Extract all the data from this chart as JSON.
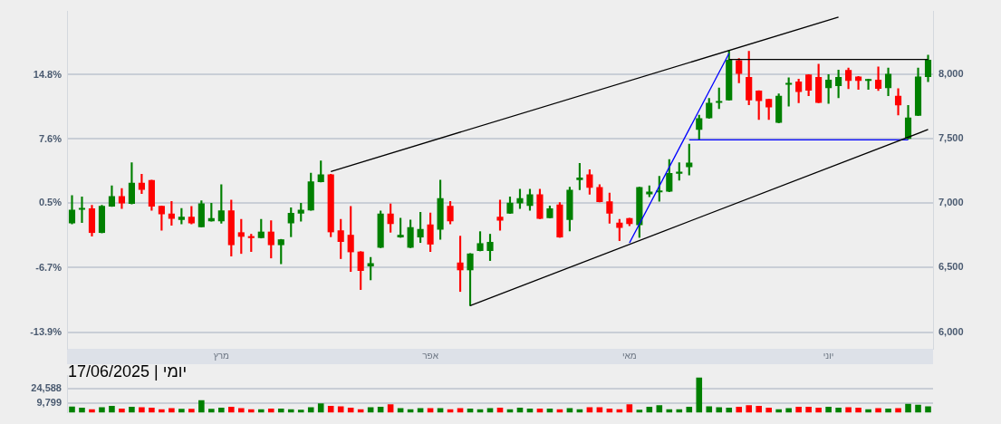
{
  "chart_data": [
    {
      "type": "candlestick",
      "title": "יומי | 17/06/2025",
      "categories": [
        null,
        null,
        null,
        null,
        null,
        null,
        null,
        null,
        null,
        null,
        null,
        null,
        null,
        null,
        null,
        "מרץ",
        null,
        null,
        null,
        null,
        null,
        null,
        null,
        null,
        null,
        null,
        null,
        null,
        null,
        null,
        null,
        null,
        null,
        null,
        null,
        null,
        "אפר",
        null,
        null,
        null,
        null,
        null,
        null,
        null,
        null,
        null,
        null,
        null,
        null,
        null,
        null,
        null,
        null,
        null,
        null,
        null,
        "מאי",
        null,
        null,
        null,
        null,
        null,
        null,
        null,
        null,
        null,
        null,
        null,
        null,
        null,
        null,
        null,
        null,
        null,
        null,
        null,
        "יוני",
        null,
        null,
        null,
        null,
        null,
        null,
        null,
        null,
        null,
        null
      ],
      "ohlc": [
        [
          6845,
          7060,
          6840,
          6950
        ],
        [
          6950,
          7050,
          6850,
          6955
        ],
        [
          6960,
          6985,
          6745,
          6770
        ],
        [
          6770,
          6985,
          6770,
          6980
        ],
        [
          6975,
          7135,
          6975,
          7055
        ],
        [
          7055,
          7115,
          6960,
          7000
        ],
        [
          6995,
          7315,
          6995,
          7160
        ],
        [
          7160,
          7225,
          7075,
          7105
        ],
        [
          7180,
          7180,
          6945,
          6975
        ],
        [
          6980,
          6980,
          6790,
          6915
        ],
        [
          6920,
          7015,
          6830,
          6880
        ],
        [
          6870,
          6960,
          6840,
          6895
        ],
        [
          6895,
          6975,
          6840,
          6845
        ],
        [
          6815,
          7020,
          6815,
          7000
        ],
        [
          6860,
          7000,
          6860,
          6885
        ],
        [
          6860,
          7145,
          6845,
          6945
        ],
        [
          6945,
          7025,
          6590,
          6675
        ],
        [
          6775,
          6875,
          6610,
          6740
        ],
        [
          6745,
          6760,
          6625,
          6730
        ],
        [
          6730,
          6875,
          6730,
          6780
        ],
        [
          6780,
          6865,
          6575,
          6675
        ],
        [
          6675,
          6720,
          6530,
          6720
        ],
        [
          6845,
          6965,
          6740,
          6925
        ],
        [
          6920,
          7000,
          6860,
          6950
        ],
        [
          6945,
          7235,
          6945,
          7170
        ],
        [
          7165,
          7330,
          7165,
          7225
        ],
        [
          7225,
          7225,
          6740,
          6775
        ],
        [
          6790,
          6875,
          6570,
          6700
        ],
        [
          6755,
          6975,
          6470,
          6620
        ],
        [
          6625,
          6625,
          6330,
          6475
        ],
        [
          6510,
          6580,
          6405,
          6535
        ],
        [
          6655,
          6940,
          6655,
          6920
        ],
        [
          6920,
          6995,
          6775,
          6840
        ],
        [
          6735,
          6885,
          6735,
          6755
        ],
        [
          6655,
          6870,
          6655,
          6815
        ],
        [
          6735,
          6930,
          6695,
          6800
        ],
        [
          6835,
          6925,
          6625,
          6680
        ],
        [
          6795,
          7180,
          6720,
          7040
        ],
        [
          6980,
          7015,
          6840,
          6860
        ],
        [
          6540,
          6745,
          6315,
          6480
        ],
        [
          6480,
          6610,
          6205,
          6610
        ],
        [
          6630,
          6780,
          6630,
          6690
        ],
        [
          6630,
          6760,
          6555,
          6700
        ],
        [
          6895,
          7025,
          6790,
          6865
        ],
        [
          6920,
          7050,
          6920,
          7005
        ],
        [
          7000,
          7110,
          6960,
          7040
        ],
        [
          6980,
          7110,
          6945,
          7070
        ],
        [
          7070,
          7110,
          6880,
          6880
        ],
        [
          6885,
          6980,
          6885,
          6960
        ],
        [
          6990,
          7005,
          6735,
          6735
        ],
        [
          6870,
          7125,
          6785,
          7105
        ],
        [
          7180,
          7310,
          7105,
          7200
        ],
        [
          7225,
          7260,
          7070,
          7120
        ],
        [
          7125,
          7145,
          7010,
          7010
        ],
        [
          7015,
          7080,
          6845,
          6920
        ],
        [
          6850,
          6875,
          6710,
          6810
        ],
        [
          6885,
          6885,
          6825,
          6840
        ],
        [
          6830,
          7125,
          6735,
          7125
        ],
        [
          7070,
          7135,
          7050,
          7090
        ],
        [
          7085,
          7210,
          7015,
          7095
        ],
        [
          7090,
          7340,
          7090,
          7235
        ],
        [
          7230,
          7315,
          7180,
          7245
        ],
        [
          7280,
          7460,
          7220,
          7315
        ],
        [
          7570,
          7685,
          7490,
          7660
        ],
        [
          7660,
          7815,
          7660,
          7780
        ],
        [
          7780,
          7895,
          7735,
          7790
        ],
        [
          7800,
          8185,
          7800,
          8115
        ],
        [
          8110,
          8125,
          7935,
          8005
        ],
        [
          7980,
          8180,
          7765,
          7800
        ],
        [
          7875,
          7875,
          7650,
          7795
        ],
        [
          7810,
          7810,
          7650,
          7745
        ],
        [
          7625,
          7850,
          7625,
          7835
        ],
        [
          7920,
          7975,
          7755,
          7925
        ],
        [
          7945,
          7965,
          7780,
          7865
        ],
        [
          8000,
          8000,
          7835,
          7875
        ],
        [
          7980,
          8080,
          7780,
          7780
        ],
        [
          7895,
          8000,
          7775,
          7960
        ],
        [
          7910,
          8035,
          7820,
          7980
        ],
        [
          8035,
          8050,
          7890,
          7950
        ],
        [
          7985,
          7985,
          7885,
          7950
        ],
        [
          7950,
          7965,
          7885,
          7960
        ],
        [
          7960,
          8060,
          7875,
          7890
        ],
        [
          7895,
          8050,
          7835,
          8005
        ],
        [
          7835,
          7890,
          7685,
          7760
        ],
        [
          7500,
          7760,
          7500,
          7665
        ],
        [
          7680,
          8050,
          7680,
          7985
        ],
        [
          7980,
          8150,
          7945,
          8115
        ]
      ],
      "colors": [
        "#008000",
        "#008000",
        "#ff0000",
        "#008000",
        "#008000",
        "#ff0000",
        "#008000",
        "#ff0000",
        "#ff0000",
        "#ff0000",
        "#ff0000",
        "#008000",
        "#ff0000",
        "#008000",
        "#008000",
        "#008000",
        "#ff0000",
        "#ff0000",
        "#ff0000",
        "#008000",
        "#ff0000",
        "#008000",
        "#008000",
        "#008000",
        "#008000",
        "#008000",
        "#ff0000",
        "#ff0000",
        "#ff0000",
        "#ff0000",
        "#008000",
        "#008000",
        "#ff0000",
        "#008000",
        "#008000",
        "#008000",
        "#ff0000",
        "#008000",
        "#ff0000",
        "#ff0000",
        "#008000",
        "#008000",
        "#008000",
        "#ff0000",
        "#008000",
        "#008000",
        "#008000",
        "#ff0000",
        "#008000",
        "#ff0000",
        "#008000",
        "#008000",
        "#ff0000",
        "#ff0000",
        "#ff0000",
        "#ff0000",
        "#ff0000",
        "#008000",
        "#008000",
        "#008000",
        "#008000",
        "#008000",
        "#008000",
        "#008000",
        "#008000",
        "#008000",
        "#008000",
        "#ff0000",
        "#ff0000",
        "#ff0000",
        "#ff0000",
        "#008000",
        "#008000",
        "#ff0000",
        "#ff0000",
        "#ff0000",
        "#008000",
        "#008000",
        "#ff0000",
        "#ff0000",
        "#008000",
        "#ff0000",
        "#008000",
        "#ff0000",
        "#008000",
        "#008000",
        "#008000"
      ],
      "series": [
        {
          "type": "line",
          "color": "#000000",
          "values": [
            null,
            null,
            null,
            null,
            null,
            null,
            null,
            null,
            null,
            null,
            null,
            null,
            null,
            null,
            null,
            null,
            null,
            null,
            null,
            null,
            null,
            null,
            null,
            null,
            null,
            null,
            7247,
            null,
            null,
            null,
            null,
            null,
            null,
            null,
            null,
            null,
            null,
            null,
            null,
            null,
            null,
            null,
            null,
            null,
            null,
            null,
            null,
            null,
            null,
            null,
            null,
            null,
            null,
            null,
            null,
            null,
            null,
            null,
            null,
            null,
            null,
            null,
            null,
            null,
            null,
            null,
            null,
            null,
            null,
            null,
            null,
            null,
            null,
            null,
            null,
            null,
            null,
            8445,
            null,
            null,
            null,
            null,
            null,
            null,
            null,
            null,
            null
          ]
        },
        {
          "type": "line",
          "color": "#000000",
          "values": [
            null,
            null,
            null,
            null,
            null,
            null,
            null,
            null,
            null,
            null,
            null,
            null,
            null,
            null,
            null,
            null,
            null,
            null,
            null,
            null,
            null,
            null,
            null,
            null,
            null,
            null,
            null,
            null,
            null,
            null,
            null,
            null,
            null,
            null,
            null,
            null,
            null,
            null,
            null,
            null,
            6205,
            null,
            null,
            null,
            null,
            null,
            null,
            null,
            null,
            null,
            null,
            null,
            null,
            null,
            null,
            null,
            null,
            null,
            null,
            null,
            null,
            null,
            null,
            null,
            null,
            null,
            null,
            null,
            null,
            null,
            null,
            null,
            null,
            null,
            null,
            null,
            null,
            null,
            null,
            null,
            null,
            null,
            null,
            null,
            null,
            null,
            7573
          ]
        },
        {
          "type": "line",
          "color": "#0000ff",
          "values": [
            null,
            null,
            null,
            null,
            null,
            null,
            null,
            null,
            null,
            null,
            null,
            null,
            null,
            null,
            null,
            null,
            null,
            null,
            null,
            null,
            null,
            null,
            null,
            null,
            null,
            null,
            null,
            null,
            null,
            null,
            null,
            null,
            null,
            null,
            null,
            null,
            null,
            null,
            null,
            null,
            null,
            null,
            null,
            null,
            null,
            null,
            null,
            null,
            null,
            null,
            null,
            null,
            null,
            null,
            null,
            null,
            6692,
            null,
            null,
            null,
            null,
            null,
            null,
            null,
            null,
            null,
            8164,
            null,
            null,
            null,
            null,
            null,
            null,
            null,
            null,
            null,
            null,
            null,
            null,
            null,
            null,
            null,
            null,
            null,
            null,
            null,
            null
          ]
        },
        {
          "type": "line",
          "color": "#0000ff",
          "values": [
            null,
            null,
            null,
            null,
            null,
            null,
            null,
            null,
            null,
            null,
            null,
            null,
            null,
            null,
            null,
            null,
            null,
            null,
            null,
            null,
            null,
            null,
            null,
            null,
            null,
            null,
            null,
            null,
            null,
            null,
            null,
            null,
            null,
            null,
            null,
            null,
            null,
            null,
            null,
            null,
            null,
            null,
            null,
            null,
            null,
            null,
            null,
            null,
            null,
            null,
            null,
            null,
            null,
            null,
            null,
            null,
            null,
            null,
            null,
            null,
            null,
            null,
            7493,
            null,
            null,
            null,
            null,
            null,
            null,
            null,
            null,
            null,
            null,
            null,
            null,
            null,
            null,
            null,
            null,
            null,
            null,
            null,
            null,
            null,
            7493,
            null,
            null
          ]
        },
        {
          "type": "line",
          "color": "#000000",
          "values": [
            null,
            null,
            null,
            null,
            null,
            null,
            null,
            null,
            null,
            null,
            null,
            null,
            null,
            null,
            null,
            null,
            null,
            null,
            null,
            null,
            null,
            null,
            null,
            null,
            null,
            null,
            null,
            null,
            null,
            null,
            null,
            null,
            null,
            null,
            null,
            null,
            null,
            null,
            null,
            null,
            null,
            null,
            null,
            null,
            null,
            null,
            null,
            null,
            null,
            null,
            null,
            null,
            null,
            null,
            null,
            null,
            null,
            null,
            null,
            null,
            null,
            null,
            null,
            null,
            null,
            null,
            8117,
            null,
            null,
            null,
            null,
            null,
            null,
            null,
            null,
            null,
            null,
            null,
            null,
            null,
            null,
            null,
            null,
            null,
            null,
            null,
            8117
          ]
        }
      ],
      "ylim": [
        5870,
        8490
      ],
      "yticks": [
        {
          "value": 6000,
          "label": "6,000"
        },
        {
          "value": 6500,
          "label": "6,500"
        },
        {
          "value": 7000,
          "label": "7,000"
        },
        {
          "value": 7500,
          "label": "7,500"
        },
        {
          "value": 8000,
          "label": "8,000"
        }
      ],
      "y2lim": [
        -15.73,
        21.9
      ],
      "y2ticks": [
        {
          "value": -13.9,
          "label": "-13.9%"
        },
        {
          "value": -6.7,
          "label": "-6.7%"
        },
        {
          "value": 0.5,
          "label": "0.5%"
        },
        {
          "value": 7.6,
          "label": "7.6%"
        },
        {
          "value": 14.8,
          "label": "14.8%"
        }
      ],
      "grid": "y",
      "legend": false
    },
    {
      "type": "bar",
      "categories": [
        null,
        null,
        null,
        null,
        null,
        null,
        null,
        null,
        null,
        null,
        null,
        null,
        null,
        null,
        null,
        null,
        null,
        null,
        null,
        null,
        null,
        null,
        null,
        null,
        null,
        null,
        null,
        null,
        null,
        null,
        null,
        null,
        null,
        null,
        null,
        null,
        null,
        null,
        null,
        null,
        null,
        null,
        null,
        null,
        null,
        null,
        null,
        null,
        null,
        null,
        null,
        null,
        null,
        null,
        null,
        null,
        null,
        null,
        null,
        null,
        null,
        null,
        null,
        null,
        null,
        null,
        null,
        null,
        null,
        null,
        null,
        null,
        null,
        null,
        null,
        null,
        null,
        null,
        null,
        null,
        null,
        null,
        null,
        null,
        null,
        null,
        null
      ],
      "values": [
        6200,
        5000,
        3500,
        5600,
        7000,
        4000,
        6000,
        5500,
        5000,
        3500,
        4500,
        3800,
        3800,
        12800,
        3800,
        5000,
        6000,
        4500,
        3500,
        3500,
        4000,
        4200,
        3500,
        3000,
        5600,
        9500,
        7000,
        6500,
        5000,
        3500,
        5500,
        6000,
        8500,
        4500,
        3500,
        4500,
        4500,
        4500,
        3500,
        4500,
        4000,
        3500,
        4500,
        5000,
        3500,
        5000,
        4000,
        4000,
        4000,
        3500,
        4500,
        3500,
        5500,
        5500,
        4000,
        3500,
        8500,
        3000,
        6000,
        7500,
        3500,
        3500,
        6000,
        36000,
        6500,
        5500,
        5000,
        6000,
        7500,
        7000,
        5000,
        3500,
        4500,
        6000,
        6000,
        5000,
        6000,
        5000,
        5500,
        5000,
        3500,
        4500,
        4000,
        4500,
        9000,
        8000,
        6500
      ],
      "colors": [
        "#008000",
        "#008000",
        "#ff0000",
        "#008000",
        "#008000",
        "#ff0000",
        "#008000",
        "#ff0000",
        "#ff0000",
        "#ff0000",
        "#ff0000",
        "#008000",
        "#ff0000",
        "#008000",
        "#008000",
        "#008000",
        "#ff0000",
        "#ff0000",
        "#ff0000",
        "#008000",
        "#ff0000",
        "#008000",
        "#008000",
        "#008000",
        "#008000",
        "#008000",
        "#ff0000",
        "#ff0000",
        "#ff0000",
        "#ff0000",
        "#008000",
        "#008000",
        "#ff0000",
        "#008000",
        "#008000",
        "#008000",
        "#ff0000",
        "#008000",
        "#ff0000",
        "#ff0000",
        "#008000",
        "#008000",
        "#008000",
        "#ff0000",
        "#008000",
        "#008000",
        "#008000",
        "#ff0000",
        "#008000",
        "#ff0000",
        "#008000",
        "#008000",
        "#ff0000",
        "#ff0000",
        "#ff0000",
        "#ff0000",
        "#ff0000",
        "#008000",
        "#008000",
        "#008000",
        "#008000",
        "#008000",
        "#008000",
        "#008000",
        "#008000",
        "#008000",
        "#008000",
        "#ff0000",
        "#ff0000",
        "#ff0000",
        "#ff0000",
        "#008000",
        "#008000",
        "#ff0000",
        "#ff0000",
        "#ff0000",
        "#008000",
        "#008000",
        "#ff0000",
        "#ff0000",
        "#008000",
        "#ff0000",
        "#008000",
        "#ff0000",
        "#008000",
        "#008000",
        "#008000"
      ],
      "ylim": [
        0,
        38000
      ],
      "yticks": [
        {
          "value": 9799,
          "label": "9,799"
        },
        {
          "value": 24588,
          "label": "24,588"
        }
      ],
      "grid": "y",
      "tick_labels": "y"
    }
  ]
}
